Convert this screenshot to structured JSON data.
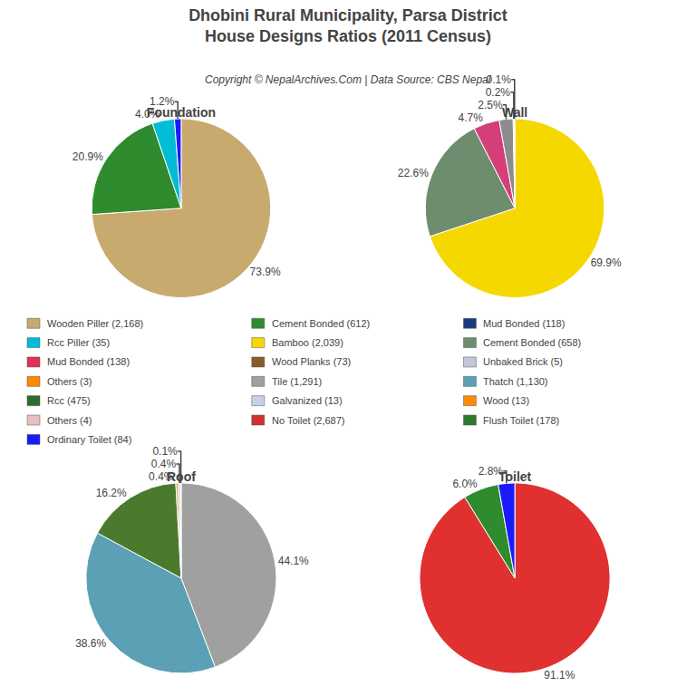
{
  "title": "Dhobini Rural Municipality, Parsa District\nHouse Designs Ratios (2011 Census)",
  "subtitle": "Copyright © NepalArchives.Com | Data Source: CBS Nepal",
  "chart_data": [
    {
      "type": "pie",
      "title": "Foundation",
      "values": [
        73.9,
        20.9,
        4.0,
        1.2
      ],
      "value_labels": [
        "73.9%",
        "20.9%",
        "4.0%",
        "1.2%"
      ],
      "colors": [
        "#c8a96e",
        "#2e8b2e",
        "#00bcd4",
        "#1a1aff"
      ],
      "data_labels": true
    },
    {
      "type": "pie",
      "title": "Wall",
      "values": [
        69.9,
        22.6,
        4.7,
        2.5,
        0.2,
        0.1
      ],
      "value_labels": [
        "69.9%",
        "22.6%",
        "4.7%",
        "2.5%",
        "0.2%",
        "0.1%"
      ],
      "colors": [
        "#f5d800",
        "#6e8c6e",
        "#d43f7a",
        "#8c8c8c",
        "#c0c8d8",
        "#ff8c00"
      ],
      "data_labels": true
    },
    {
      "type": "pie",
      "title": "Roof",
      "values": [
        44.1,
        38.6,
        16.2,
        0.4,
        0.4,
        0.1
      ],
      "value_labels": [
        "44.1%",
        "38.6%",
        "16.2%",
        "0.4%",
        "0.4%",
        "0.1%"
      ],
      "colors": [
        "#a0a0a0",
        "#5ba0b4",
        "#4a7a2e",
        "#c8a050",
        "#d0d0d0",
        "#c0d8c0"
      ],
      "data_labels": true
    },
    {
      "type": "pie",
      "title": "Toilet",
      "values": [
        91.1,
        6.0,
        2.8
      ],
      "value_labels": [
        "91.1%",
        "6.0%",
        "2.8%"
      ],
      "colors": [
        "#e03030",
        "#2e8b2e",
        "#1a1aff"
      ],
      "data_labels": true
    }
  ],
  "annotations": [
    [
      {
        "text": "Wooden Piller (2,168)",
        "color": "#c8a96e"
      },
      {
        "text": "Rcc Piller (35)",
        "color": "#00bcd4"
      },
      {
        "text": "Mud Bonded (138)",
        "color": "#e0305a"
      },
      {
        "text": "Others (3)",
        "color": "#ff8800"
      },
      {
        "text": "Rcc (475)",
        "color": "#2e6b2e"
      },
      {
        "text": "Others (4)",
        "color": "#e8c0c0"
      },
      {
        "text": "Ordinary Toilet (84)",
        "color": "#1a1aff"
      }
    ],
    [
      {
        "text": "Cement Bonded (612)",
        "color": "#2e8b2e"
      },
      {
        "text": "Bamboo (2,039)",
        "color": "#f5d800"
      },
      {
        "text": "Wood Planks (73)",
        "color": "#8b5a2b"
      },
      {
        "text": "Tile (1,291)",
        "color": "#a0a0a0"
      },
      {
        "text": "Galvanized (13)",
        "color": "#c8d0e8"
      },
      {
        "text": "No Toilet (2,687)",
        "color": "#d03030"
      }
    ],
    [
      {
        "text": "Mud Bonded (118)",
        "color": "#1a3a7a"
      },
      {
        "text": "Cement Bonded (658)",
        "color": "#6e8c6e"
      },
      {
        "text": "Unbaked Brick (5)",
        "color": "#c0c8d8"
      },
      {
        "text": "Thatch (1,130)",
        "color": "#5ba0b4"
      },
      {
        "text": "Wood (13)",
        "color": "#ff8c00"
      },
      {
        "text": "Flush Toilet (178)",
        "color": "#2e7b2e"
      }
    ]
  ]
}
